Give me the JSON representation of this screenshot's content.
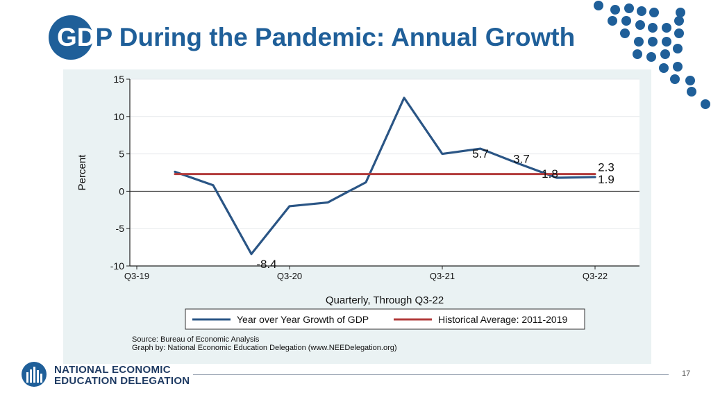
{
  "slide": {
    "title_prefix": "GD",
    "title_rest": "P During the Pandemic: Annual Growth",
    "page_number": "17",
    "org_line1": "NATIONAL ECONOMIC",
    "org_line2": "EDUCATION DELEGATION",
    "accent_color": "#1f5f99"
  },
  "chart_data": {
    "type": "line",
    "ylabel": "Percent",
    "xlabel": "Quarterly, Through Q3-22",
    "ylim": [
      -10,
      15
    ],
    "yticks": [
      15,
      10,
      5,
      0,
      -5,
      -10
    ],
    "xticks": [
      {
        "label": "Q3-19",
        "index": 0
      },
      {
        "label": "Q3-20",
        "index": 4
      },
      {
        "label": "Q3-21",
        "index": 8
      },
      {
        "label": "Q3-22",
        "index": 12
      }
    ],
    "x": [
      1,
      2,
      3,
      4,
      5,
      6,
      7,
      8,
      9,
      10,
      11,
      12
    ],
    "series": [
      {
        "name": "Year over Year Growth of GDP",
        "color": "#2a5585",
        "values": [
          2.6,
          0.8,
          -8.4,
          -2.0,
          -1.5,
          1.2,
          12.5,
          5.0,
          5.7,
          3.7,
          1.8,
          1.9
        ]
      },
      {
        "name": "Historical Average: 2011-2019",
        "color": "#b23b3b",
        "values": [
          2.3,
          2.3,
          2.3,
          2.3,
          2.3,
          2.3,
          2.3,
          2.3,
          2.3,
          2.3,
          2.3,
          2.3
        ]
      }
    ],
    "data_labels": [
      {
        "text": "-8.4",
        "index": 3,
        "value": -8.4
      },
      {
        "text": "5.7",
        "index": 9,
        "value": 5.7
      },
      {
        "text": "3.7",
        "index": 10,
        "value": 3.7
      },
      {
        "text": "1.8",
        "index": 11,
        "value": 1.8
      },
      {
        "text": "2.3",
        "index": 12,
        "value": 2.3
      },
      {
        "text": "1.9",
        "index": 12,
        "value": 1.9
      }
    ],
    "legend": [
      {
        "label": "Year over Year Growth of GDP",
        "color": "#2a5585"
      },
      {
        "label": "Historical Average: 2011-2019",
        "color": "#b23b3b"
      }
    ],
    "source_line1": "Source: Bureau of Economic Analysis",
    "source_line2": "Graph by: National Economic Education Delegation (www.NEEDelegation.org)"
  }
}
